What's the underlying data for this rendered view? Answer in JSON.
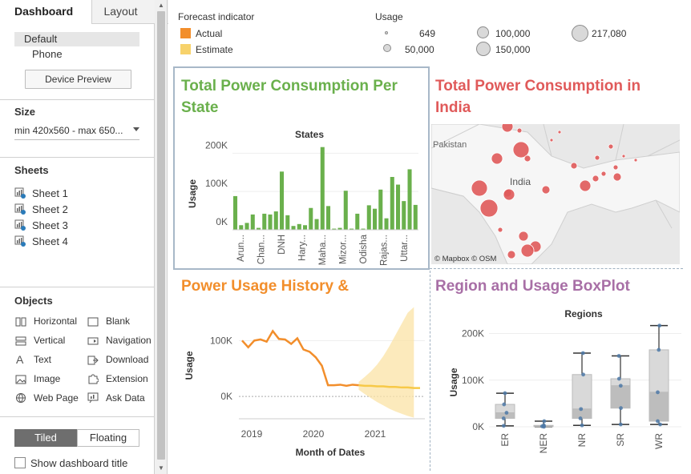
{
  "panel": {
    "tabs": {
      "dashboard": "Dashboard",
      "layout": "Layout",
      "collapse": "‹"
    },
    "devices": {
      "default": "Default",
      "phone": "Phone",
      "preview_button": "Device Preview"
    },
    "size": {
      "title": "Size",
      "value": "min 420x560 - max 650..."
    },
    "sheets": {
      "title": "Sheets",
      "items": [
        "Sheet 1",
        "Sheet 2",
        "Sheet 3",
        "Sheet 4"
      ]
    },
    "objects": {
      "title": "Objects",
      "items": [
        {
          "label": "Horizontal",
          "icon": "horizontal-container-icon"
        },
        {
          "label": "Blank",
          "icon": "blank-icon"
        },
        {
          "label": "Vertical",
          "icon": "vertical-container-icon"
        },
        {
          "label": "Navigation",
          "icon": "navigation-icon"
        },
        {
          "label": "Text",
          "icon": "text-icon"
        },
        {
          "label": "Download",
          "icon": "download-icon"
        },
        {
          "label": "Image",
          "icon": "image-icon"
        },
        {
          "label": "Extension",
          "icon": "extension-icon"
        },
        {
          "label": "Web Page",
          "icon": "web-page-icon"
        },
        {
          "label": "Ask Data",
          "icon": "ask-data-icon"
        }
      ]
    },
    "layout_mode": {
      "tiled": "Tiled",
      "floating": "Floating"
    },
    "show_title": "Show dashboard title"
  },
  "legends": {
    "forecast": {
      "title": "Forecast indicator",
      "items": [
        {
          "label": "Actual",
          "color": "#f28e2b"
        },
        {
          "label": "Estimate",
          "color": "#f7d26b"
        }
      ]
    },
    "usage": {
      "title": "Usage",
      "items": [
        "649",
        "50,000",
        "100,000",
        "150,000",
        "217,080"
      ]
    }
  },
  "zones": {
    "state": {
      "title": "Total Power Consumption Per State",
      "color": "#6ab04c"
    },
    "india": {
      "title": "Total Power Consumption in India",
      "color": "#e05a5a",
      "map_labels": {
        "pakistan": "Pakistan",
        "india": "India",
        "credit": "© Mapbox © OSM"
      }
    },
    "history": {
      "title": "Power Usage History &",
      "color": "#f28e2b"
    },
    "boxplot": {
      "title": "Region and Usage BoxPlot",
      "color": "#a86fa6"
    }
  },
  "chart_data": [
    {
      "type": "bar",
      "title": "States",
      "ylabel": "Usage",
      "ylim": [
        0,
        230000
      ],
      "yticks": [
        "0K",
        "100K",
        "200K"
      ],
      "tick_labels": [
        "Arun...",
        "Chan...",
        "DNH",
        "Hary...",
        "Maha...",
        "Mizor...",
        "Odisha",
        "Rajas...",
        "Uttar..."
      ],
      "color": "#6ab04c",
      "values": [
        88000,
        12000,
        18000,
        40000,
        5000,
        42000,
        40000,
        48000,
        152000,
        38000,
        10000,
        15000,
        12000,
        57000,
        28000,
        216000,
        62000,
        3000,
        5000,
        102000,
        3000,
        42000,
        3000,
        64000,
        55000,
        105000,
        30000,
        138000,
        118000,
        75000,
        158000,
        65000
      ]
    },
    {
      "type": "line",
      "xlabel": "Month of Dates",
      "ylabel": "Usage",
      "xticks": [
        "2019",
        "2020",
        "2021"
      ],
      "yticks": [
        "0K",
        "100K"
      ],
      "ylim": [
        -40000,
        165000
      ],
      "series": [
        {
          "name": "Actual",
          "color": "#f28e2b",
          "values": [
            100000,
            88000,
            100000,
            102000,
            98000,
            117000,
            103000,
            102000,
            94000,
            104000,
            84000,
            80000,
            70000,
            55000,
            20000,
            20000,
            21000,
            19000,
            21000,
            20000
          ]
        },
        {
          "name": "Estimate",
          "color": "#f7c948",
          "values": [
            19000,
            19000,
            18000,
            18000,
            17000,
            17000,
            16000,
            16000,
            15000,
            15000
          ]
        }
      ],
      "estimate_band": {
        "upper": [
          26000,
          35000,
          45000,
          57000,
          72000,
          90000,
          110000,
          130000,
          150000,
          160000
        ],
        "lower": [
          12000,
          4000,
          -3000,
          -10000,
          -16000,
          -22000,
          -27000,
          -31000,
          -35000,
          -38000
        ]
      }
    },
    {
      "type": "box",
      "title": "Regions",
      "ylabel": "Usage",
      "ylim": [
        0,
        225000
      ],
      "yticks": [
        "0K",
        "100K",
        "200K"
      ],
      "categories": [
        "ER",
        "NER",
        "NR",
        "SR",
        "WR"
      ],
      "boxes": [
        {
          "min": 2000,
          "q1": 18000,
          "median": 30000,
          "q3": 48000,
          "max": 72000
        },
        {
          "min": 0,
          "q1": 1000,
          "median": 2000,
          "q3": 3000,
          "max": 12000
        },
        {
          "min": 3000,
          "q1": 18000,
          "median": 38000,
          "q3": 112000,
          "max": 158000
        },
        {
          "min": 5000,
          "q1": 40000,
          "median": 88000,
          "q3": 103000,
          "max": 152000
        },
        {
          "min": 5000,
          "q1": 12000,
          "median": 74000,
          "q3": 165000,
          "max": 217000
        }
      ]
    },
    {
      "type": "scatter",
      "title": "Total Power Consumption in India",
      "note": "bubble map of usage by state",
      "color": "#e05a5a"
    }
  ]
}
